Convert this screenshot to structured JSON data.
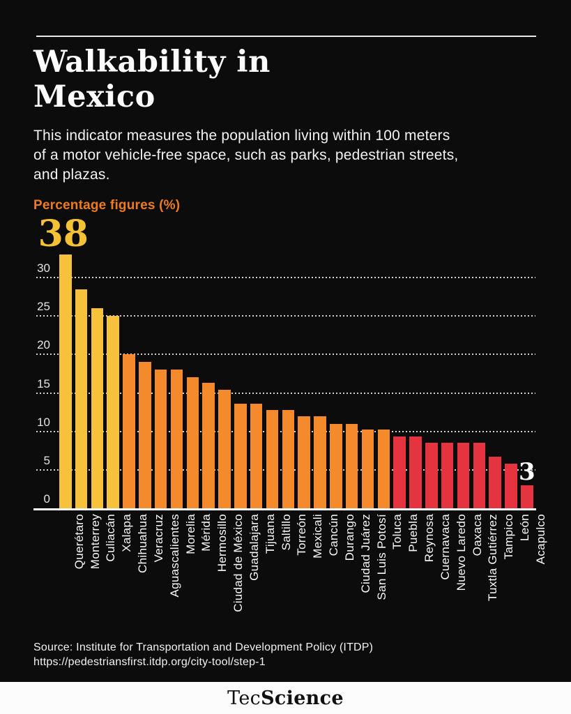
{
  "page": {
    "title": "Walkability in\nMexico",
    "subtitle": "This indicator measures the population living within 100 meters\nof a motor vehicle-free space, such as parks, pedestrian streets,\nand plazas.",
    "units_label": "Percentage figures (%)"
  },
  "source": {
    "line1": "Source: Institute for Transportation and Development Policy (ITDP)",
    "line2": "https://pedestriansfirst.itdp.org/city-tool/step-1"
  },
  "brand": {
    "regular": "Tec",
    "bold": "Science"
  },
  "colors": {
    "background": "#0C0C0C",
    "accent_text_orange": "#EE7C1E",
    "bar_yellow": "#F6C13B",
    "bar_orange": "#F58A2D",
    "bar_red": "#E5333F",
    "grid_white": "#FFFFFF",
    "annotation_yellow": "#F5C235",
    "annotation_white": "#FFFFFF"
  },
  "chart_data": {
    "type": "bar",
    "title": "Walkability in Mexico",
    "xlabel": "",
    "ylabel": "Percentage figures (%)",
    "yticks": [
      0,
      5,
      10,
      15,
      20,
      25,
      30
    ],
    "ylim": [
      0,
      33
    ],
    "grid": "dotted horizontal gridlines, legend none",
    "note": "First bar (Querétaro, 38) is truncated at the top of the plot area; value labels shown only for first and last bars.",
    "categories": [
      "Querétaro",
      "Monterrey",
      "Culiacán",
      "Xalapa",
      "Chihuahua",
      "Veracruz",
      "Aguascalientes",
      "Morelia",
      "Mérida",
      "Hermosillo",
      "Ciudad de México",
      "Guadalajara",
      "Tijuana",
      "Saltillo",
      "Torreón",
      "Mexicali",
      "Cancún",
      "Durango",
      "Ciudad Juárez",
      "San Luis Potosí",
      "Toluca",
      "Puebla",
      "Reynosa",
      "Cuernavaca",
      "Nuevo Laredo",
      "Oaxaca",
      "Tuxtla Gutiérrez",
      "Tampico",
      "León",
      "Acapulco"
    ],
    "values": [
      38,
      28.5,
      26,
      25,
      20,
      19,
      18,
      18,
      17,
      16.3,
      15.4,
      13.6,
      13.6,
      12.8,
      12.8,
      12,
      12,
      11,
      11,
      10.2,
      10.2,
      9.3,
      9.3,
      8.5,
      8.5,
      8.5,
      8.5,
      6.7,
      5.8,
      3
    ],
    "bar_color_keys": [
      "yellow",
      "yellow",
      "yellow",
      "yellow",
      "orange",
      "orange",
      "orange",
      "orange",
      "orange",
      "orange",
      "orange",
      "orange",
      "orange",
      "orange",
      "orange",
      "orange",
      "orange",
      "orange",
      "orange",
      "orange",
      "orange",
      "red",
      "red",
      "red",
      "red",
      "red",
      "red",
      "red",
      "red",
      "red"
    ],
    "annotations": [
      {
        "index": 0,
        "text": "38",
        "color_key": "annotation_yellow"
      },
      {
        "index": 29,
        "text": "3",
        "color_key": "annotation_white"
      }
    ]
  }
}
